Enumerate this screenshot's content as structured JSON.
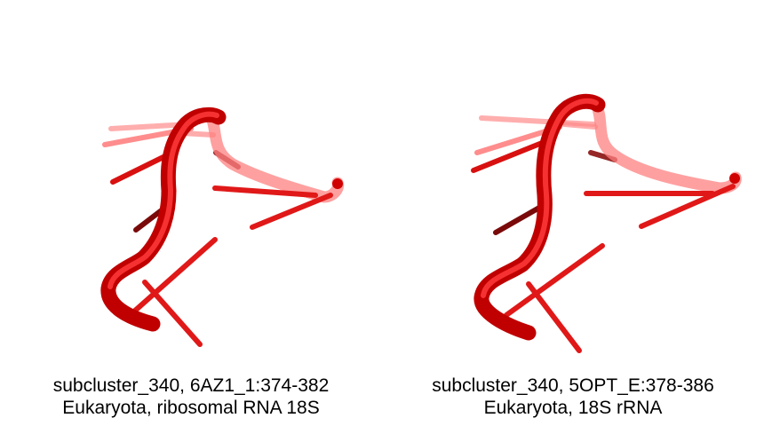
{
  "panels": [
    {
      "caption_line1": "subcluster_340, 6AZ1_1:374-382",
      "caption_line2": "Eukaryota, ribosomal RNA 18S"
    },
    {
      "caption_line1": "subcluster_340, 5OPT_E:378-386",
      "caption_line2": "Eukaryota, 18S rRNA"
    }
  ],
  "colors": {
    "backbone": "#e01010",
    "backbone_light": "#ff6a6a",
    "base_dark": "#7a0a0a",
    "background": "#ffffff"
  }
}
